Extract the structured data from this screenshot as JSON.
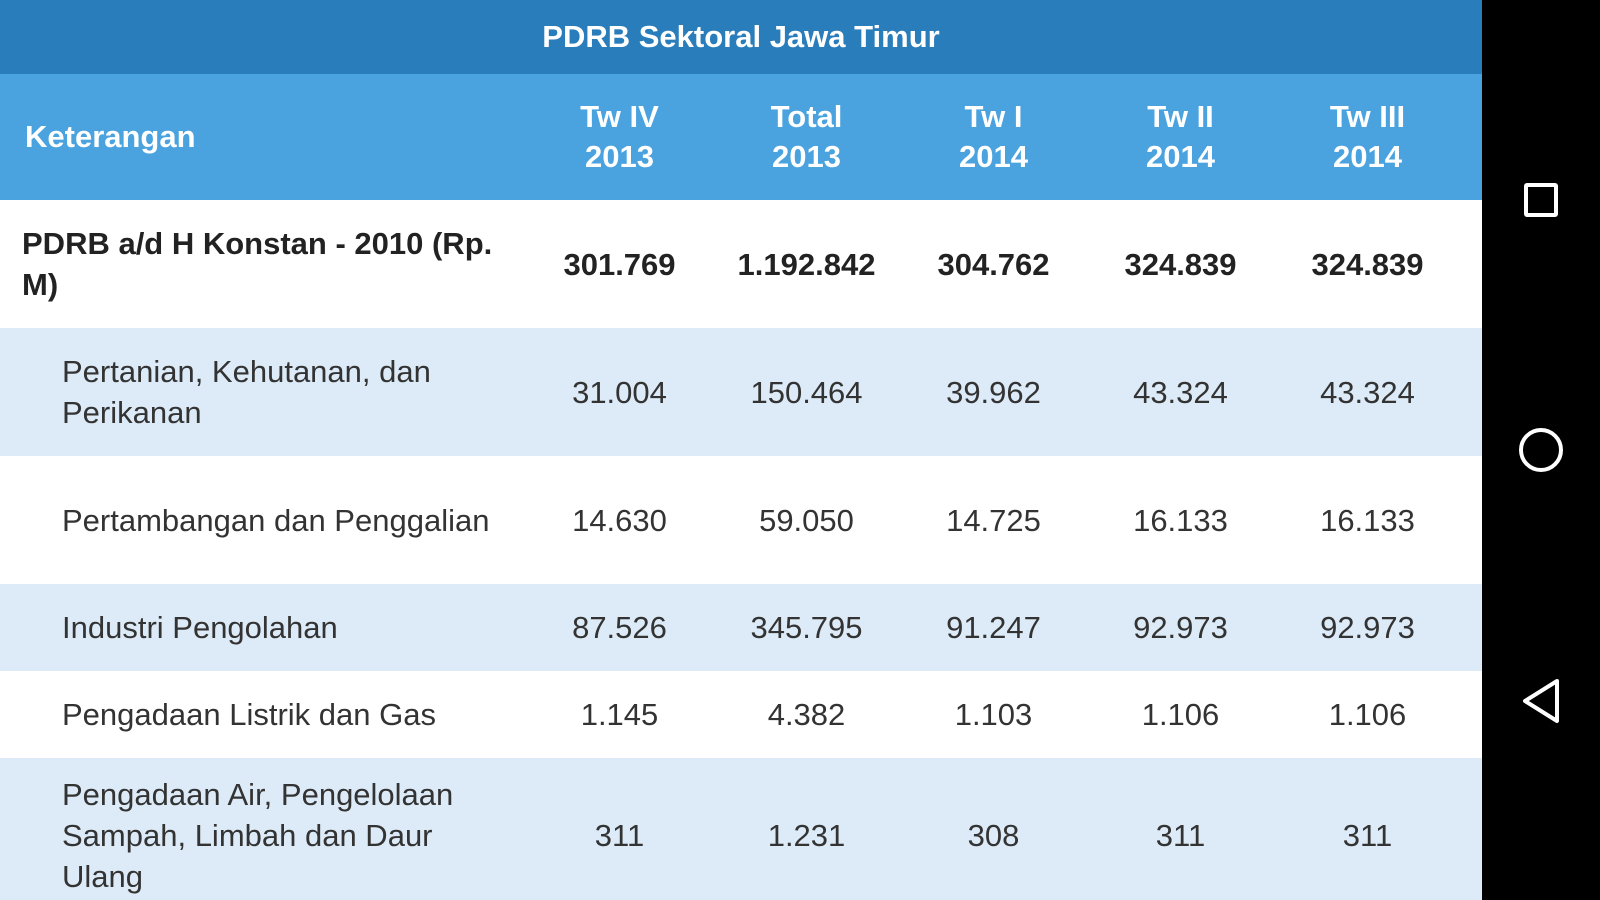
{
  "app": {
    "title": "PDRB Sektoral Jawa Timur"
  },
  "table": {
    "columns": [
      {
        "line1": "Tw IV",
        "line2": "2013"
      },
      {
        "line1": "Total",
        "line2": "2013"
      },
      {
        "line1": "Tw I",
        "line2": "2014"
      },
      {
        "line1": "Tw II",
        "line2": "2014"
      },
      {
        "line1": "Tw III",
        "line2": "2014"
      }
    ],
    "label_header": "Keterangan",
    "rows": [
      {
        "label": "PDRB a/d H Konstan - 2010 (Rp. M)",
        "values": [
          "301.769",
          "1.192.842",
          "304.762",
          "324.839",
          "324.839"
        ]
      },
      {
        "label": "Pertanian, Kehutanan, dan Perikanan",
        "values": [
          "31.004",
          "150.464",
          "39.962",
          "43.324",
          "43.324"
        ]
      },
      {
        "label": "Pertambangan dan Penggalian",
        "values": [
          "14.630",
          "59.050",
          "14.725",
          "16.133",
          "16.133"
        ]
      },
      {
        "label": "Industri Pengolahan",
        "values": [
          "87.526",
          "345.795",
          "91.247",
          "92.973",
          "92.973"
        ]
      },
      {
        "label": "Pengadaan Listrik dan Gas",
        "values": [
          "1.145",
          "4.382",
          "1.103",
          "1.106",
          "1.106"
        ]
      },
      {
        "label": "Pengadaan Air, Pengelolaan Sampah, Limbah dan Daur Ulang",
        "values": [
          "311",
          "1.231",
          "308",
          "311",
          "311"
        ]
      }
    ]
  },
  "navbar": {
    "recent_icon": "square-icon",
    "home_icon": "circle-icon",
    "back_icon": "triangle-back-icon"
  },
  "colors": {
    "title_bar": "#2a7dbb",
    "header_row": "#4aa3df",
    "alt_row": "#dcebf7",
    "navbar": "#000000"
  }
}
